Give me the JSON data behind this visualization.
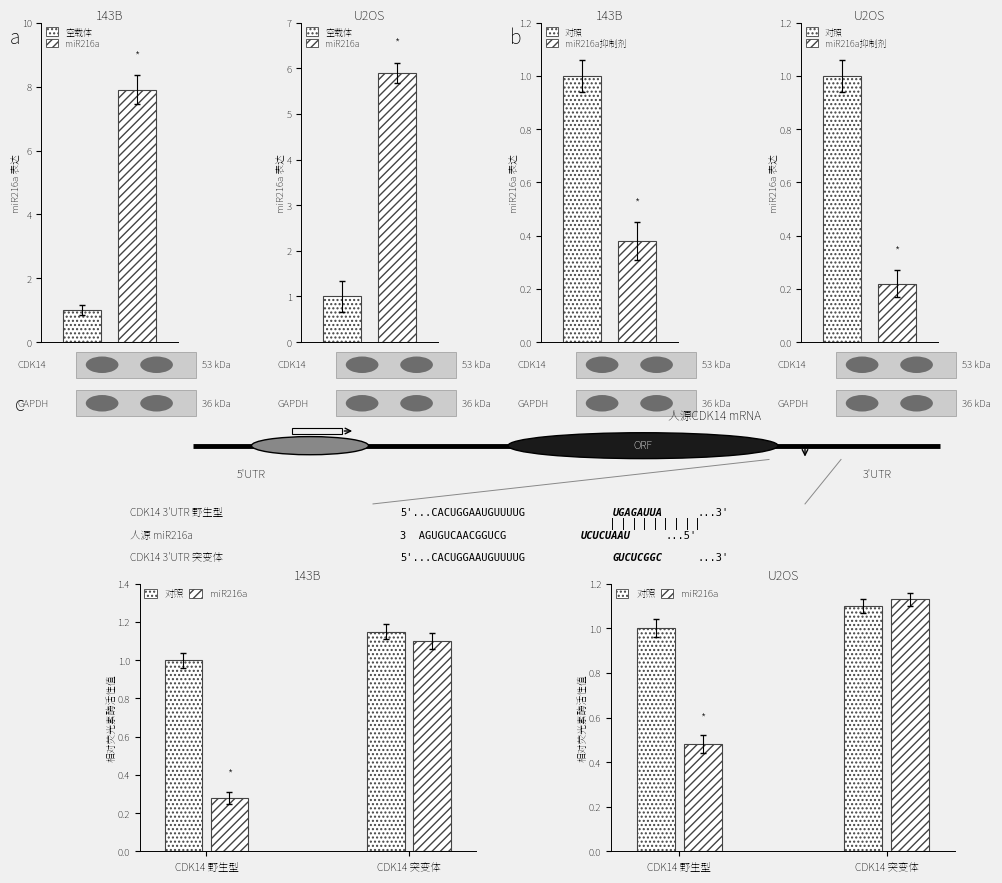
{
  "panel_a": {
    "subpanels": [
      {
        "title": "143B",
        "legend": [
          "空载体",
          "miR216a"
        ],
        "values": [
          1.0,
          7.9
        ],
        "errors": [
          0.15,
          0.45
        ],
        "ylim": [
          0,
          10
        ],
        "yticks": [
          0,
          2,
          4,
          6,
          8,
          10
        ],
        "ylabel": "miR216a 表达",
        "star_bar": 1,
        "cdkband": "CDK14",
        "gapdh": "GAPDH",
        "kda1": "53 kDa",
        "kda2": "36 kDa"
      },
      {
        "title": "U2OS",
        "legend": [
          "空载体",
          "miR216a"
        ],
        "values": [
          1.0,
          5.9
        ],
        "errors": [
          0.35,
          0.22
        ],
        "ylim": [
          0,
          7
        ],
        "yticks": [
          0,
          1,
          2,
          3,
          4,
          5,
          6,
          7
        ],
        "ylabel": "miR216a 表达",
        "star_bar": 1,
        "cdkband": "CDK14",
        "gapdh": "GAPDH",
        "kda1": "53 kDa",
        "kda2": "36 kDa"
      }
    ]
  },
  "panel_b": {
    "subpanels": [
      {
        "title": "143B",
        "legend": [
          "对照",
          "miR216a抑制剂"
        ],
        "values": [
          1.0,
          0.38
        ],
        "errors": [
          0.06,
          0.07
        ],
        "ylim": [
          0,
          1.2
        ],
        "yticks": [
          0.0,
          0.2,
          0.4,
          0.6,
          0.8,
          1.0,
          1.2
        ],
        "ylabel": "miR216a 表达",
        "star_bar": 1,
        "cdkband": "CDK14",
        "gapdh": "GAPDH",
        "kda1": "53 kDa",
        "kda2": "36 kDa"
      },
      {
        "title": "U2OS",
        "legend": [
          "对照",
          "miR216a抑制剂"
        ],
        "values": [
          1.0,
          0.22
        ],
        "errors": [
          0.06,
          0.05
        ],
        "ylim": [
          0,
          1.2
        ],
        "yticks": [
          0.0,
          0.2,
          0.4,
          0.6,
          0.8,
          1.0,
          1.2
        ],
        "ylabel": "miR216a 表达",
        "star_bar": 1,
        "cdkband": "CDK14",
        "gapdh": "GAPDH",
        "kda1": "53 kDa",
        "kda2": "36 kDa"
      }
    ]
  },
  "panel_c": {
    "mrna_label": "人源CDK14 mRNA",
    "utr5": "5'UTR",
    "orf": "ORF",
    "utr3": "3'UTR",
    "seq_lines": [
      {
        "label": "CDK14 3'UTR 野生型",
        "label_bold": true,
        "seq_normal": "5'...CACUGGAAUGUUUUG",
        "seq_italic": "UGAGAUUA",
        "seq_end": "...3'"
      },
      {
        "label": "人源 miR216a",
        "label_bold": false,
        "seq_normal": "3  AGUGUCAACGGUCG",
        "seq_italic": "UCUCUAAU",
        "seq_end": "...5'"
      },
      {
        "label": "CDK14 3'UTR 突变体",
        "label_bold": true,
        "seq_normal": "5'...CACUGGAAUGUUUUG",
        "seq_italic": "GUCUCGGC",
        "seq_end": "...3'"
      }
    ],
    "bars_143b": {
      "title": "143B",
      "legend": [
        "对照",
        "miR216a"
      ],
      "groups": [
        "CDK14 野生型",
        "CDK14 突变体"
      ],
      "values": [
        [
          1.0,
          0.28
        ],
        [
          1.15,
          1.1
        ]
      ],
      "errors": [
        [
          0.04,
          0.03
        ],
        [
          0.04,
          0.04
        ]
      ],
      "ylim": [
        0,
        1.4
      ],
      "yticks": [
        0.0,
        0.2,
        0.4,
        0.6,
        0.8,
        1.0,
        1.2,
        1.4
      ],
      "ylabel": "相对荧光素酶活性值",
      "star_group": 0,
      "star_bar": 1
    },
    "bars_u2os": {
      "title": "U2OS",
      "legend": [
        "对照",
        "miR216a"
      ],
      "groups": [
        "CDK14 野生型",
        "CDK14 突变体"
      ],
      "values": [
        [
          1.0,
          0.48
        ],
        [
          1.1,
          1.13
        ]
      ],
      "errors": [
        [
          0.04,
          0.04
        ],
        [
          0.03,
          0.03
        ]
      ],
      "ylim": [
        0,
        1.2
      ],
      "yticks": [
        0.0,
        0.2,
        0.4,
        0.6,
        0.8,
        1.0,
        1.2
      ],
      "ylabel": "相对荧光素酶活性值",
      "star_group": 0,
      "star_bar": 1
    }
  },
  "bg_color": "#f0f0f0",
  "bar_bg": "#f0f0f0"
}
